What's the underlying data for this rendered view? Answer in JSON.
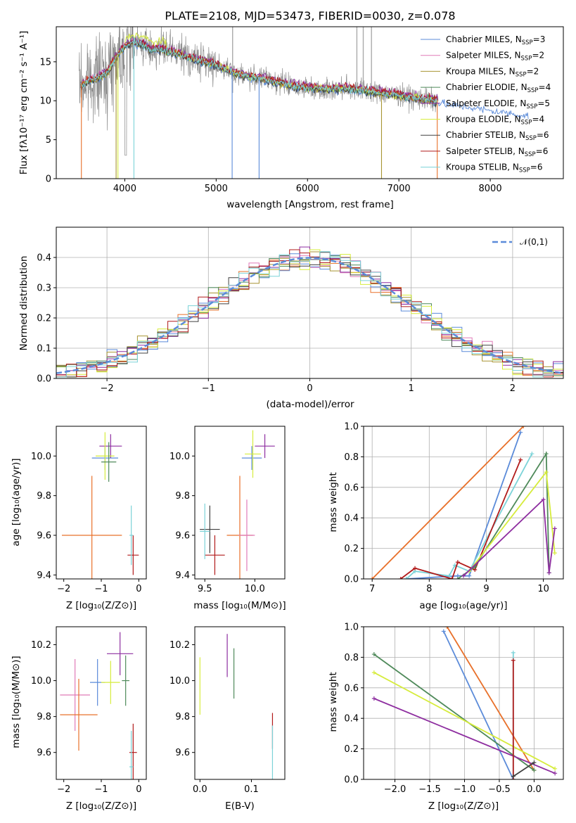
{
  "figure": {
    "title": "PLATE=2108, MJD=53473, FIBERID=0030, z=0.078"
  },
  "series_styles": [
    {
      "name": "Chabrier MILES, N_SSP=3",
      "color": "#5b8bd9"
    },
    {
      "name": "Salpeter MILES, N_SSP=2",
      "color": "#e07ab8"
    },
    {
      "name": "Kroupa MILES, N_SSP=2",
      "color": "#a89432"
    },
    {
      "name": "Chabrier ELODIE, N_SSP=4",
      "color": "#4f8a5a"
    },
    {
      "name": "Salpeter ELODIE, N_SSP=5",
      "color": "#8e2ea0"
    },
    {
      "name": "Kroupa ELODIE, N_SSP=4",
      "color": "#d6ec3c"
    },
    {
      "name": "Chabrier STELIB, N_SSP=6",
      "color": "#404040"
    },
    {
      "name": "Salpeter STELIB, N_SSP=6",
      "color": "#b11a1a"
    },
    {
      "name": "Kroupa STELIB, N_SSP=6",
      "color": "#7cd3d8"
    }
  ],
  "extra_colors": {
    "orange": "#e8702a",
    "data_gray": "#8a8a8a",
    "normal_curve": "#5b8bd9"
  },
  "chart_data": [
    {
      "id": "spectrum",
      "type": "line",
      "title": "PLATE=2108, MJD=53473, FIBERID=0030, z=0.078",
      "xlabel": "wavelength [Angstrom, rest frame]",
      "ylabel": "Flux [fλ10⁻¹⁷ erg cm⁻² s⁻¹ A⁻¹]",
      "xlim": [
        3250,
        8800
      ],
      "ylim": [
        0,
        19.5
      ],
      "xticks": [
        4000,
        5000,
        6000,
        7000,
        8000
      ],
      "yticks": [
        0,
        5,
        10,
        15
      ],
      "grid": false,
      "legend": {
        "location": "top-right",
        "entries": [
          {
            "base": "Chabrier MILES, N",
            "sub": "SSP",
            "tail": "=3"
          },
          {
            "base": "Salpeter MILES, N",
            "sub": "SSP",
            "tail": "=2"
          },
          {
            "base": "Kroupa MILES, N",
            "sub": "SSP",
            "tail": "=2"
          },
          {
            "base": "Chabrier ELODIE, N",
            "sub": "SSP",
            "tail": "=4"
          },
          {
            "base": "Salpeter ELODIE, N",
            "sub": "SSP",
            "tail": "=5"
          },
          {
            "base": "Kroupa ELODIE, N",
            "sub": "SSP",
            "tail": "=4"
          },
          {
            "base": "Chabrier STELIB, N",
            "sub": "SSP",
            "tail": "=6"
          },
          {
            "base": "Salpeter STELIB, N",
            "sub": "SSP",
            "tail": "=6"
          },
          {
            "base": "Kroupa STELIB, N",
            "sub": "SSP",
            "tail": "=6"
          }
        ]
      },
      "model_continuum": [
        [
          3520,
          12.0
        ],
        [
          3600,
          12.5
        ],
        [
          3700,
          13.0
        ],
        [
          3800,
          13.5
        ],
        [
          3900,
          15.5
        ],
        [
          4000,
          17.0
        ],
        [
          4100,
          17.5
        ],
        [
          4200,
          17.2
        ],
        [
          4300,
          16.5
        ],
        [
          4400,
          16.6
        ],
        [
          4500,
          16.3
        ],
        [
          4600,
          16.0
        ],
        [
          4800,
          15.2
        ],
        [
          5000,
          14.6
        ],
        [
          5200,
          13.6
        ],
        [
          5400,
          13.0
        ],
        [
          5600,
          12.6
        ],
        [
          5800,
          12.0
        ],
        [
          6000,
          11.7
        ],
        [
          6200,
          11.5
        ],
        [
          6400,
          11.6
        ],
        [
          6600,
          11.4
        ],
        [
          6800,
          11.0
        ],
        [
          7000,
          10.7
        ],
        [
          7200,
          10.3
        ],
        [
          7400,
          10.0
        ],
        [
          7600,
          9.6
        ],
        [
          7800,
          9.3
        ],
        [
          8000,
          8.9
        ],
        [
          8200,
          8.6
        ],
        [
          8420,
          8.2
        ]
      ],
      "data_span": [
        3500,
        7430
      ]
    },
    {
      "id": "residual_histogram",
      "type": "line",
      "xlabel": "(data-model)/error",
      "ylabel": "Normed distribution",
      "xlim": [
        -2.5,
        2.5
      ],
      "ylim": [
        0,
        0.5
      ],
      "xticks": [
        -2,
        -1,
        0,
        1,
        2
      ],
      "yticks": [
        0.0,
        0.1,
        0.2,
        0.3,
        0.4
      ],
      "grid": true,
      "legend": {
        "location": "top-right",
        "entries": [
          "𝒩(0,1)"
        ]
      },
      "bin_width": 0.1,
      "normal_curve": {
        "mean": 0,
        "sigma": 1
      }
    },
    {
      "id": "age_vs_Z",
      "type": "scatter",
      "xlabel": "Z [log₁₀(Z/Z⊙)]",
      "ylabel": "age  [log₁₀(age/yr)]",
      "xlim": [
        -2.2,
        0.2
      ],
      "ylim": [
        9.38,
        10.15
      ],
      "xticks": [
        -2,
        -1,
        0
      ],
      "yticks": [
        9.4,
        9.6,
        9.8,
        10.0
      ],
      "grid": false,
      "points": [
        {
          "c": 0,
          "x": -0.9,
          "y": 9.99,
          "xe": 0.35,
          "ye": 0.06
        },
        {
          "c": 4,
          "x": -0.75,
          "y": 10.05,
          "xe": 0.3,
          "ye": 0.06
        },
        {
          "c": 5,
          "x": -0.9,
          "y": 10.0,
          "xe": 0.25,
          "ye": 0.12
        },
        {
          "c": 9,
          "x": -1.25,
          "y": 9.6,
          "xe": 0.8,
          "ye": 0.3
        },
        {
          "c": 7,
          "x": -0.15,
          "y": 9.5,
          "xe": 0.15,
          "ye": 0.1
        },
        {
          "c": 8,
          "x": -0.2,
          "y": 9.6,
          "xe": 0.05,
          "ye": 0.15
        },
        {
          "c": 3,
          "x": -0.8,
          "y": 9.97,
          "xe": 0.2,
          "ye": 0.1
        }
      ]
    },
    {
      "id": "age_vs_mass",
      "type": "scatter",
      "xlabel": "mass [log₁₀(M/M⊙)]",
      "ylabel": "",
      "xlim": [
        9.4,
        10.3
      ],
      "ylim": [
        9.38,
        10.15
      ],
      "xticks": [
        9.5,
        10.0
      ],
      "yticks": [
        9.4,
        9.6,
        9.8,
        10.0
      ],
      "grid": false,
      "points": [
        {
          "c": 0,
          "x": 9.97,
          "y": 9.99,
          "xe": 0.1,
          "ye": 0.06
        },
        {
          "c": 4,
          "x": 10.1,
          "y": 10.05,
          "xe": 0.1,
          "ye": 0.06
        },
        {
          "c": 5,
          "x": 9.98,
          "y": 10.01,
          "xe": 0.08,
          "ye": 0.12
        },
        {
          "c": 9,
          "x": 9.85,
          "y": 9.6,
          "xe": 0.13,
          "ye": 0.3
        },
        {
          "c": 1,
          "x": 9.92,
          "y": 9.6,
          "xe": 0.08,
          "ye": 0.18
        },
        {
          "c": 7,
          "x": 9.6,
          "y": 9.5,
          "xe": 0.1,
          "ye": 0.1
        },
        {
          "c": 6,
          "x": 9.55,
          "y": 9.63,
          "xe": 0.1,
          "ye": 0.12
        },
        {
          "c": 8,
          "x": 9.5,
          "y": 9.62,
          "xe": 0.05,
          "ye": 0.14
        }
      ]
    },
    {
      "id": "massweight_vs_age",
      "type": "line",
      "xlabel": "age  [log₁₀(age/yr)]",
      "ylabel": "mass weight",
      "xlim": [
        6.85,
        10.35
      ],
      "ylim": [
        0,
        1.0
      ],
      "xticks": [
        7,
        8,
        9,
        10
      ],
      "yticks": [
        0.0,
        0.2,
        0.4,
        0.6,
        0.8,
        1.0
      ],
      "grid": true,
      "series": [
        {
          "c": 9,
          "x": [
            7.0,
            9.65
          ],
          "y": [
            0.0,
            1.0
          ]
        },
        {
          "c": 0,
          "x": [
            7.6,
            8.5,
            8.7,
            9.6
          ],
          "y": [
            0.0,
            0.02,
            0.02,
            0.96
          ]
        },
        {
          "c": 8,
          "x": [
            7.6,
            7.75,
            8.35,
            8.45,
            8.7,
            9.8
          ],
          "y": [
            0.0,
            0.05,
            0.02,
            0.09,
            0.05,
            0.82
          ]
        },
        {
          "c": 7,
          "x": [
            7.5,
            7.75,
            8.4,
            8.5,
            8.8,
            9.6
          ],
          "y": [
            0.0,
            0.07,
            0.0,
            0.11,
            0.06,
            0.78
          ]
        },
        {
          "c": 3,
          "x": [
            8.5,
            8.8,
            10.05,
            10.1
          ],
          "y": [
            0.0,
            0.08,
            0.82,
            0.04
          ]
        },
        {
          "c": 5,
          "x": [
            8.7,
            10.05,
            10.2
          ],
          "y": [
            0.05,
            0.7,
            0.17
          ]
        },
        {
          "c": 4,
          "x": [
            8.6,
            10.0,
            10.1,
            10.2
          ],
          "y": [
            0.02,
            0.52,
            0.04,
            0.33
          ]
        }
      ]
    },
    {
      "id": "mass_vs_Z",
      "type": "scatter",
      "xlabel": "Z [log₁₀(Z/Z⊙)]",
      "ylabel": "mass [log₁₀(M/M⊙)]",
      "xlim": [
        -2.2,
        0.2
      ],
      "ylim": [
        9.45,
        10.3
      ],
      "xticks": [
        -2,
        -1,
        0
      ],
      "yticks": [
        9.6,
        9.8,
        10.0,
        10.2
      ],
      "grid": false,
      "points": [
        {
          "c": 1,
          "x": -1.7,
          "y": 9.92,
          "xe": 0.4,
          "ye": 0.2
        },
        {
          "c": 9,
          "x": -1.6,
          "y": 9.81,
          "xe": 0.5,
          "ye": 0.2
        },
        {
          "c": 0,
          "x": -1.1,
          "y": 9.99,
          "xe": 0.2,
          "ye": 0.13
        },
        {
          "c": 5,
          "x": -0.75,
          "y": 9.99,
          "xe": 0.25,
          "ye": 0.12
        },
        {
          "c": 4,
          "x": -0.5,
          "y": 10.15,
          "xe": 0.35,
          "ye": 0.12
        },
        {
          "c": 3,
          "x": -0.35,
          "y": 10.0,
          "xe": 0.1,
          "ye": 0.14
        },
        {
          "c": 7,
          "x": -0.15,
          "y": 9.6,
          "xe": 0.1,
          "ye": 0.16
        },
        {
          "c": 8,
          "x": -0.2,
          "y": 9.52,
          "xe": 0.05,
          "ye": 0.2
        }
      ]
    },
    {
      "id": "mass_vs_EBV",
      "type": "scatter",
      "xlabel": "E(B-V)",
      "ylabel": "",
      "xlim": [
        -0.01,
        0.165
      ],
      "ylim": [
        9.45,
        10.3
      ],
      "xticks": [
        0.0,
        0.1
      ],
      "yticks": [
        9.6,
        9.8,
        10.0,
        10.2
      ],
      "grid": false,
      "points": [
        {
          "c": 5,
          "x": 0.0,
          "y": 9.97,
          "xe": 0,
          "ye": 0.16
        },
        {
          "c": 4,
          "x": 0.053,
          "y": 10.14,
          "xe": 0,
          "ye": 0.12
        },
        {
          "c": 3,
          "x": 0.066,
          "y": 10.04,
          "xe": 0,
          "ye": 0.14
        },
        {
          "c": 7,
          "x": 0.141,
          "y": 9.72,
          "xe": 0,
          "ye": 0.1
        },
        {
          "c": 8,
          "x": 0.141,
          "y": 9.6,
          "xe": 0,
          "ye": 0.15
        }
      ]
    },
    {
      "id": "massweight_vs_Z",
      "type": "line",
      "xlabel": "Z [log₁₀(Z/Z⊙)]",
      "ylabel": "mass weight",
      "xlim": [
        -2.45,
        0.42
      ],
      "ylim": [
        0,
        1.0
      ],
      "xticks": [
        -2.0,
        -1.5,
        -1.0,
        -0.5,
        0.0
      ],
      "yticks": [
        0.0,
        0.2,
        0.4,
        0.6,
        0.8,
        1.0
      ],
      "grid": true,
      "series": [
        {
          "c": 9,
          "x": [
            -1.25,
            0.0
          ],
          "y": [
            1.0,
            0.06
          ]
        },
        {
          "c": 0,
          "x": [
            -1.3,
            -0.3
          ],
          "y": [
            0.97,
            0.0
          ]
        },
        {
          "c": 3,
          "x": [
            -2.3,
            0.0
          ],
          "y": [
            0.82,
            0.06
          ]
        },
        {
          "c": 5,
          "x": [
            -2.3,
            0.3
          ],
          "y": [
            0.7,
            0.07
          ]
        },
        {
          "c": 4,
          "x": [
            -2.3,
            0.3
          ],
          "y": [
            0.53,
            0.04
          ]
        },
        {
          "c": 8,
          "x": [
            -0.3,
            -0.3
          ],
          "y": [
            0.0,
            0.83
          ]
        },
        {
          "c": 7,
          "x": [
            -0.3,
            -0.3
          ],
          "y": [
            0.0,
            0.78
          ]
        },
        {
          "c": 6,
          "x": [
            -0.3,
            0.0
          ],
          "y": [
            0.02,
            0.11
          ]
        }
      ]
    }
  ]
}
